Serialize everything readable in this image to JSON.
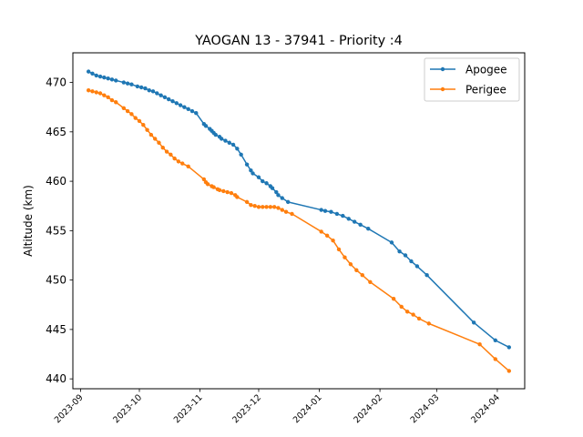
{
  "chart_data": {
    "type": "line",
    "title": "YAOGAN 13 - 37941 - Priority :4",
    "xlabel": "",
    "ylabel": "Altitude (km)",
    "xlim": [
      "2023-08-28",
      "2024-04-15"
    ],
    "ylim": [
      439,
      473
    ],
    "x_ticks": [
      "2023-09",
      "2023-10",
      "2023-11",
      "2023-12",
      "2024-01",
      "2024-02",
      "2024-03",
      "2024-04"
    ],
    "y_ticks": [
      440,
      445,
      450,
      455,
      460,
      465,
      470
    ],
    "grid": false,
    "legend": "top-right",
    "series": [
      {
        "name": "Apogee",
        "color": "#1f77b4",
        "points": [
          [
            "2023-09-05",
            471.1
          ],
          [
            "2023-09-07",
            470.9
          ],
          [
            "2023-09-09",
            470.7
          ],
          [
            "2023-09-11",
            470.6
          ],
          [
            "2023-09-13",
            470.5
          ],
          [
            "2023-09-15",
            470.4
          ],
          [
            "2023-09-17",
            470.3
          ],
          [
            "2023-09-19",
            470.2
          ],
          [
            "2023-09-23",
            470.0
          ],
          [
            "2023-09-25",
            469.9
          ],
          [
            "2023-09-27",
            469.8
          ],
          [
            "2023-09-30",
            469.6
          ],
          [
            "2023-10-02",
            469.5
          ],
          [
            "2023-10-04",
            469.4
          ],
          [
            "2023-10-06",
            469.2
          ],
          [
            "2023-10-08",
            469.1
          ],
          [
            "2023-10-10",
            468.9
          ],
          [
            "2023-10-12",
            468.7
          ],
          [
            "2023-10-14",
            468.5
          ],
          [
            "2023-10-16",
            468.3
          ],
          [
            "2023-10-18",
            468.1
          ],
          [
            "2023-10-20",
            467.9
          ],
          [
            "2023-10-22",
            467.7
          ],
          [
            "2023-10-24",
            467.5
          ],
          [
            "2023-10-26",
            467.3
          ],
          [
            "2023-10-28",
            467.1
          ],
          [
            "2023-10-30",
            466.9
          ],
          [
            "2023-11-03",
            465.8
          ],
          [
            "2023-11-04",
            465.6
          ],
          [
            "2023-11-06",
            465.3
          ],
          [
            "2023-11-07",
            465.1
          ],
          [
            "2023-11-08",
            464.9
          ],
          [
            "2023-11-09",
            464.7
          ],
          [
            "2023-11-11",
            464.5
          ],
          [
            "2023-11-12",
            464.3
          ],
          [
            "2023-11-14",
            464.1
          ],
          [
            "2023-11-16",
            463.9
          ],
          [
            "2023-11-18",
            463.7
          ],
          [
            "2023-11-20",
            463.3
          ],
          [
            "2023-11-22",
            462.7
          ],
          [
            "2023-11-25",
            461.7
          ],
          [
            "2023-11-27",
            461.1
          ],
          [
            "2023-11-28",
            460.8
          ],
          [
            "2023-12-01",
            460.4
          ],
          [
            "2023-12-03",
            460.0
          ],
          [
            "2023-12-05",
            459.8
          ],
          [
            "2023-12-07",
            459.5
          ],
          [
            "2023-12-08",
            459.3
          ],
          [
            "2023-12-10",
            458.9
          ],
          [
            "2023-12-11",
            458.6
          ],
          [
            "2023-12-13",
            458.3
          ],
          [
            "2023-12-16",
            457.9
          ],
          [
            "2024-01-02",
            457.1
          ],
          [
            "2024-01-04",
            457.0
          ],
          [
            "2024-01-07",
            456.9
          ],
          [
            "2024-01-10",
            456.7
          ],
          [
            "2024-01-13",
            456.5
          ],
          [
            "2024-01-16",
            456.2
          ],
          [
            "2024-01-19",
            455.9
          ],
          [
            "2024-01-22",
            455.6
          ],
          [
            "2024-01-26",
            455.2
          ],
          [
            "2024-02-07",
            453.8
          ],
          [
            "2024-02-11",
            452.9
          ],
          [
            "2024-02-14",
            452.5
          ],
          [
            "2024-02-17",
            451.9
          ],
          [
            "2024-02-20",
            451.4
          ],
          [
            "2024-02-25",
            450.5
          ],
          [
            "2024-03-20",
            445.7
          ],
          [
            "2024-03-31",
            443.9
          ],
          [
            "2024-04-07",
            443.2
          ]
        ]
      },
      {
        "name": "Perigee",
        "color": "#ff7f0e",
        "points": [
          [
            "2023-09-05",
            469.2
          ],
          [
            "2023-09-07",
            469.1
          ],
          [
            "2023-09-09",
            469.0
          ],
          [
            "2023-09-11",
            468.9
          ],
          [
            "2023-09-13",
            468.7
          ],
          [
            "2023-09-15",
            468.5
          ],
          [
            "2023-09-17",
            468.2
          ],
          [
            "2023-09-19",
            468.0
          ],
          [
            "2023-09-23",
            467.4
          ],
          [
            "2023-09-25",
            467.1
          ],
          [
            "2023-09-27",
            466.8
          ],
          [
            "2023-09-29",
            466.4
          ],
          [
            "2023-10-01",
            466.1
          ],
          [
            "2023-10-03",
            465.7
          ],
          [
            "2023-10-05",
            465.2
          ],
          [
            "2023-10-07",
            464.7
          ],
          [
            "2023-10-09",
            464.3
          ],
          [
            "2023-10-11",
            463.9
          ],
          [
            "2023-10-13",
            463.4
          ],
          [
            "2023-10-15",
            463.0
          ],
          [
            "2023-10-17",
            462.7
          ],
          [
            "2023-10-19",
            462.3
          ],
          [
            "2023-10-21",
            462.0
          ],
          [
            "2023-10-23",
            461.8
          ],
          [
            "2023-10-26",
            461.5
          ],
          [
            "2023-11-03",
            460.2
          ],
          [
            "2023-11-04",
            459.9
          ],
          [
            "2023-11-05",
            459.7
          ],
          [
            "2023-11-07",
            459.5
          ],
          [
            "2023-11-08",
            459.4
          ],
          [
            "2023-11-10",
            459.2
          ],
          [
            "2023-11-11",
            459.1
          ],
          [
            "2023-11-13",
            459.0
          ],
          [
            "2023-11-15",
            458.9
          ],
          [
            "2023-11-17",
            458.8
          ],
          [
            "2023-11-19",
            458.6
          ],
          [
            "2023-11-20",
            458.4
          ],
          [
            "2023-11-25",
            457.9
          ],
          [
            "2023-11-27",
            457.6
          ],
          [
            "2023-11-29",
            457.5
          ],
          [
            "2023-12-01",
            457.4
          ],
          [
            "2023-12-03",
            457.4
          ],
          [
            "2023-12-05",
            457.4
          ],
          [
            "2023-12-07",
            457.4
          ],
          [
            "2023-12-09",
            457.4
          ],
          [
            "2023-12-11",
            457.3
          ],
          [
            "2023-12-13",
            457.1
          ],
          [
            "2023-12-15",
            456.9
          ],
          [
            "2023-12-18",
            456.7
          ],
          [
            "2024-01-02",
            454.9
          ],
          [
            "2024-01-05",
            454.5
          ],
          [
            "2024-01-08",
            454.0
          ],
          [
            "2024-01-11",
            453.1
          ],
          [
            "2024-01-14",
            452.3
          ],
          [
            "2024-01-17",
            451.6
          ],
          [
            "2024-01-20",
            451.0
          ],
          [
            "2024-01-23",
            450.5
          ],
          [
            "2024-01-27",
            449.8
          ],
          [
            "2024-02-08",
            448.1
          ],
          [
            "2024-02-12",
            447.3
          ],
          [
            "2024-02-15",
            446.8
          ],
          [
            "2024-02-18",
            446.5
          ],
          [
            "2024-02-21",
            446.1
          ],
          [
            "2024-02-26",
            445.6
          ],
          [
            "2024-03-23",
            443.5
          ],
          [
            "2024-03-31",
            442.0
          ],
          [
            "2024-04-07",
            440.8
          ]
        ]
      }
    ]
  }
}
